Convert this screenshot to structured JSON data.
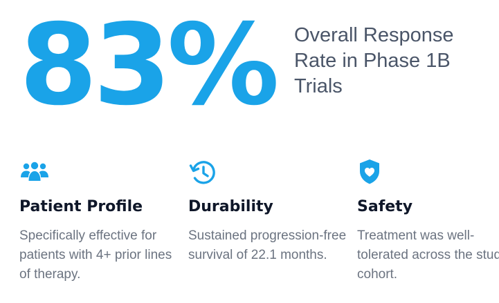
{
  "hero": {
    "stat": "83%",
    "caption": "Overall Response Rate in Phase 1B Trials"
  },
  "colors": {
    "accent": "#1aa3e8",
    "heading": "#0f1729",
    "body": "#6b7380",
    "caption": "#4a5568"
  },
  "features": [
    {
      "icon": "users-icon",
      "title": "Patient Profile",
      "text": "Specifically effective for patients with 4+ prior lines of therapy."
    },
    {
      "icon": "history-clock-icon",
      "title": "Durability",
      "text": "Sustained progression-free survival of 22.1 months."
    },
    {
      "icon": "shield-heart-icon",
      "title": "Safety",
      "text": "Treatment was well-tolerated across the study cohort."
    }
  ]
}
